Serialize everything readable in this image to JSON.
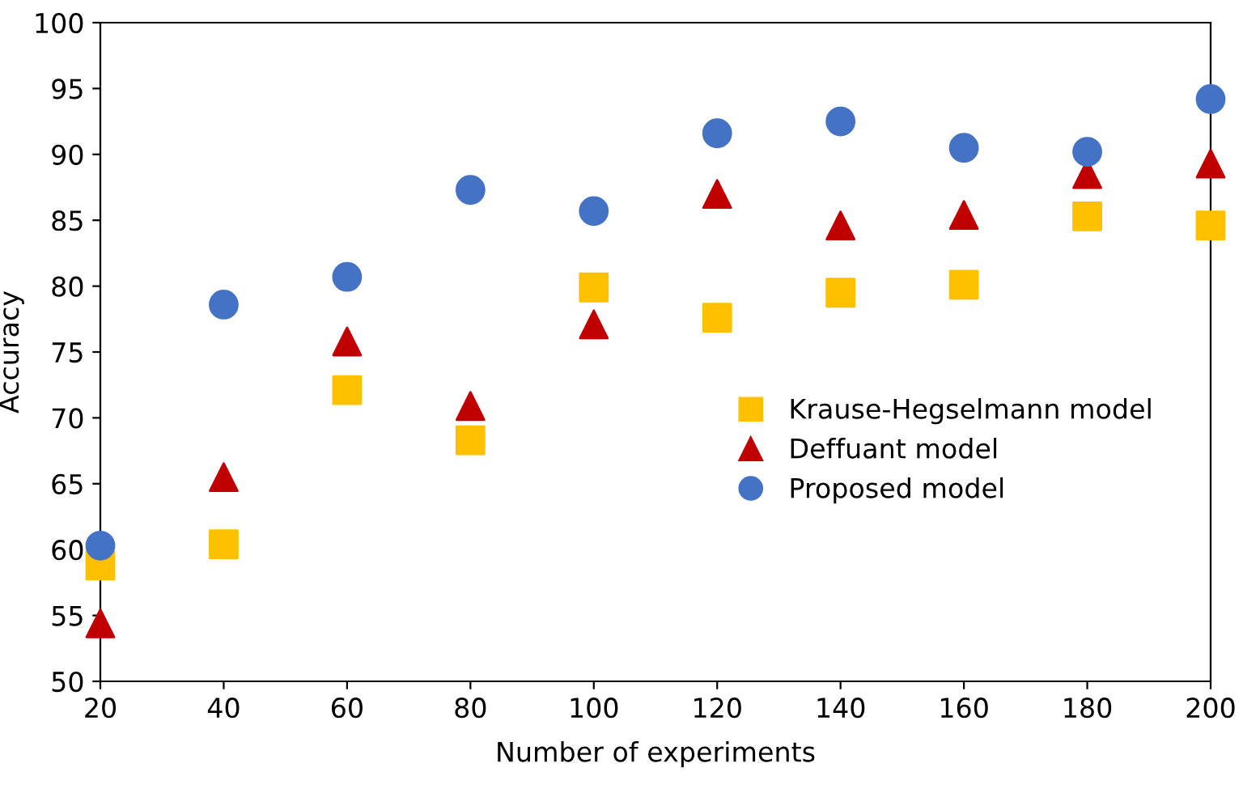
{
  "chart_data": {
    "type": "scatter",
    "xlabel": "Number of experiments",
    "ylabel": "Accuracy",
    "x": [
      20,
      40,
      60,
      80,
      100,
      120,
      140,
      160,
      180,
      200
    ],
    "series": [
      {
        "name": "Krause-Hegselmann model",
        "color": "#ffc000",
        "marker": "square",
        "values": [
          58.8,
          60.4,
          72.1,
          68.3,
          79.9,
          77.6,
          79.5,
          80.1,
          85.3,
          84.6
        ]
      },
      {
        "name": "Deffuant model",
        "color": "#c00000",
        "marker": "triangle",
        "values": [
          54.4,
          65.5,
          75.8,
          70.9,
          77.1,
          87.0,
          84.6,
          85.4,
          88.5,
          89.3
        ]
      },
      {
        "name": "Proposed model",
        "color": "#4472c4",
        "marker": "circle",
        "values": [
          60.3,
          78.6,
          80.7,
          87.3,
          85.7,
          91.6,
          92.5,
          90.5,
          90.2,
          94.2
        ]
      }
    ],
    "xlim": [
      20,
      200
    ],
    "xticks": [
      20,
      40,
      60,
      80,
      100,
      120,
      140,
      160,
      180,
      200
    ],
    "ylim": [
      50,
      100
    ],
    "yticks": [
      50,
      55,
      60,
      65,
      70,
      75,
      80,
      85,
      90,
      95,
      100
    ],
    "grid": false,
    "legend": "right"
  }
}
